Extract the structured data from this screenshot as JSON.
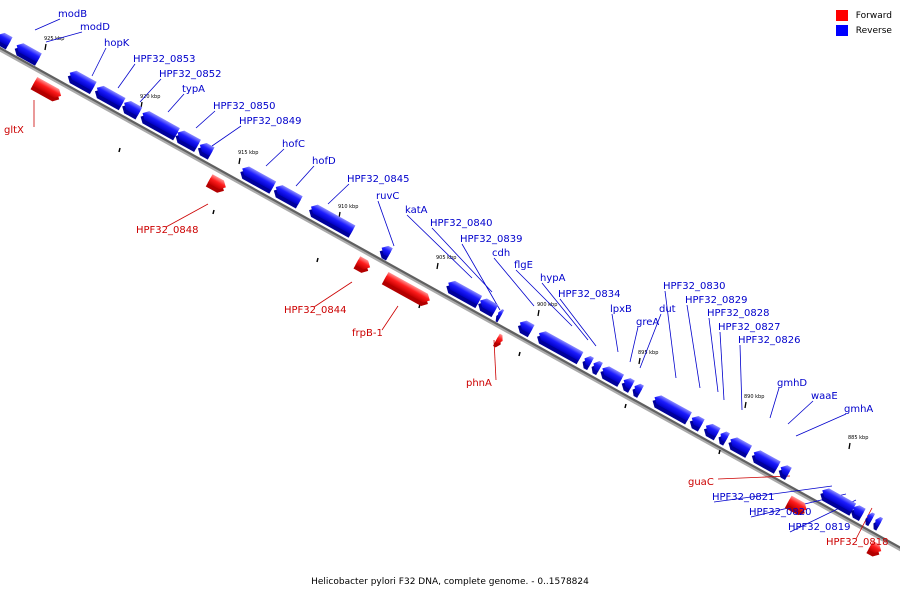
{
  "caption": "Helicobacter pylori F32 DNA, complete genome. - 0..1578824",
  "legend": [
    {
      "label": "Forward",
      "color": "#ff0000"
    },
    {
      "label": "Reverse",
      "color": "#0000ff"
    }
  ],
  "ticks": [
    "925 kbp",
    "920 kbp",
    "915 kbp",
    "910 kbp",
    "905 kbp",
    "900 kbp",
    "895 kbp",
    "890 kbp",
    "885 kbp"
  ],
  "genes": [
    {
      "name": "modB",
      "strand": "reverse"
    },
    {
      "name": "modD",
      "strand": "reverse"
    },
    {
      "name": "hopK",
      "strand": "reverse"
    },
    {
      "name": "HPF32_0853",
      "strand": "reverse"
    },
    {
      "name": "HPF32_0852",
      "strand": "reverse"
    },
    {
      "name": "typA",
      "strand": "reverse"
    },
    {
      "name": "HPF32_0850",
      "strand": "reverse"
    },
    {
      "name": "HPF32_0849",
      "strand": "reverse"
    },
    {
      "name": "hofC",
      "strand": "reverse"
    },
    {
      "name": "hofD",
      "strand": "reverse"
    },
    {
      "name": "HPF32_0845",
      "strand": "reverse"
    },
    {
      "name": "ruvC",
      "strand": "reverse"
    },
    {
      "name": "katA",
      "strand": "reverse"
    },
    {
      "name": "HPF32_0840",
      "strand": "reverse"
    },
    {
      "name": "HPF32_0839",
      "strand": "reverse"
    },
    {
      "name": "cdh",
      "strand": "reverse"
    },
    {
      "name": "flgE",
      "strand": "reverse"
    },
    {
      "name": "hypA",
      "strand": "reverse"
    },
    {
      "name": "HPF32_0834",
      "strand": "reverse"
    },
    {
      "name": "lpxB",
      "strand": "reverse"
    },
    {
      "name": "greA",
      "strand": "reverse"
    },
    {
      "name": "dut",
      "strand": "reverse"
    },
    {
      "name": "HPF32_0830",
      "strand": "reverse"
    },
    {
      "name": "HPF32_0829",
      "strand": "reverse"
    },
    {
      "name": "HPF32_0828",
      "strand": "reverse"
    },
    {
      "name": "HPF32_0827",
      "strand": "reverse"
    },
    {
      "name": "HPF32_0826",
      "strand": "reverse"
    },
    {
      "name": "gmhD",
      "strand": "reverse"
    },
    {
      "name": "waaE",
      "strand": "reverse"
    },
    {
      "name": "gmhA",
      "strand": "reverse"
    },
    {
      "name": "gltX",
      "strand": "forward"
    },
    {
      "name": "HPF32_0848",
      "strand": "forward"
    },
    {
      "name": "HPF32_0844",
      "strand": "forward"
    },
    {
      "name": "frpB-1",
      "strand": "forward"
    },
    {
      "name": "phnA",
      "strand": "forward"
    },
    {
      "name": "guaC",
      "strand": "forward"
    },
    {
      "name": "HPF32_0821",
      "strand": "reverse"
    },
    {
      "name": "HPF32_0820",
      "strand": "reverse"
    },
    {
      "name": "HPF32_0819",
      "strand": "reverse"
    },
    {
      "name": "HPF32_0818",
      "strand": "forward"
    }
  ]
}
